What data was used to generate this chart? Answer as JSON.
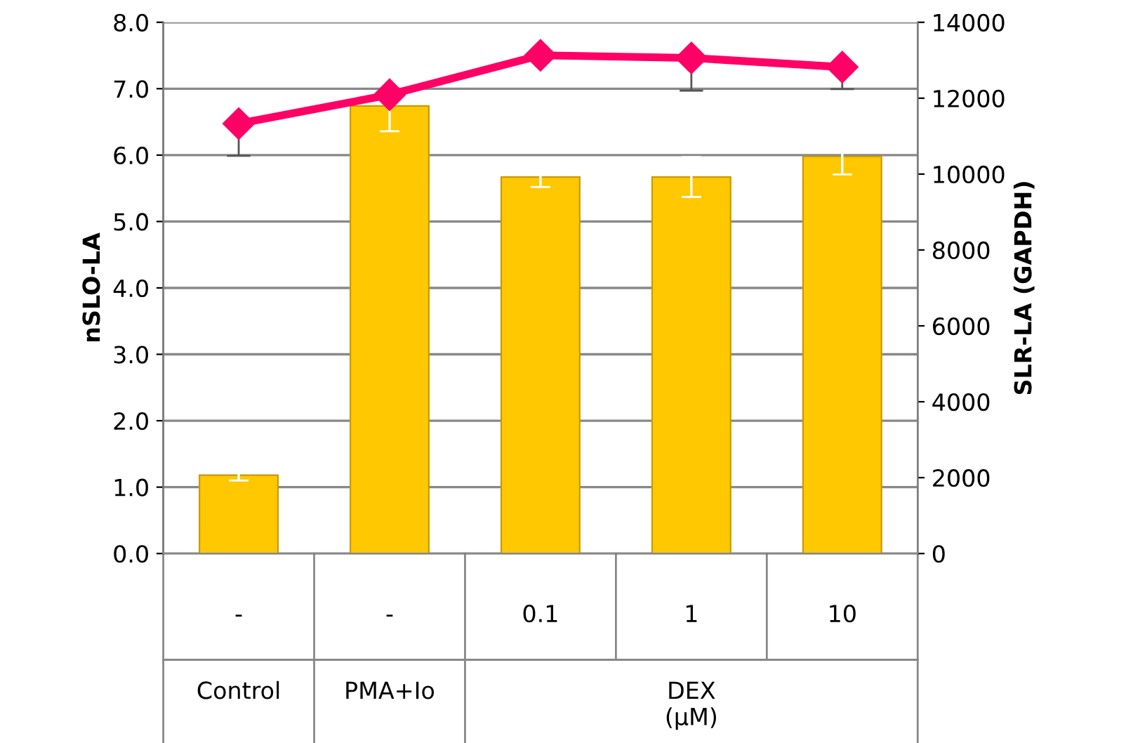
{
  "chart_data": {
    "type": "bar",
    "xlabel": null,
    "ylabel": "nSLO-LA",
    "y2label": "SLR-LA (GAPDH)",
    "categories": [
      "-",
      "-",
      "0.1",
      "1",
      "10"
    ],
    "annotations": [
      "Control",
      "PMA+Io",
      "DEX\n(μM)"
    ],
    "series": [
      {
        "color": "#ffc800",
        "values": [
          1.18,
          6.74,
          5.67,
          5.67,
          5.98
        ],
        "errors": [
          0.08,
          0.38,
          0.15,
          0.3,
          0.27
        ]
      },
      {
        "type": "line",
        "axis": "y2",
        "color": "#ff0066",
        "marker": "diamond",
        "values": [
          11330,
          12090,
          13130,
          13060,
          12820
        ],
        "errors": [
          [
            10480,
            11330
          ],
          null,
          null,
          [
            12200,
            13060
          ],
          [
            12240,
            12820
          ]
        ]
      }
    ],
    "ylim": [
      0,
      8
    ],
    "yticks": [
      {
        "value": 0,
        "label": "0.0"
      },
      {
        "value": 1,
        "label": "1.0"
      },
      {
        "value": 2,
        "label": "2.0"
      },
      {
        "value": 3,
        "label": "3.0"
      },
      {
        "value": 4,
        "label": "4.0"
      },
      {
        "value": 5,
        "label": "5.0"
      },
      {
        "value": 6,
        "label": "6.0"
      },
      {
        "value": 7,
        "label": "7.0"
      },
      {
        "value": 8,
        "label": "8.0"
      }
    ],
    "y2lim": [
      0,
      14000
    ],
    "y2ticks": [
      0,
      2000,
      4000,
      6000,
      8000,
      10000,
      12000,
      14000
    ],
    "grid": "y",
    "legend": false
  }
}
